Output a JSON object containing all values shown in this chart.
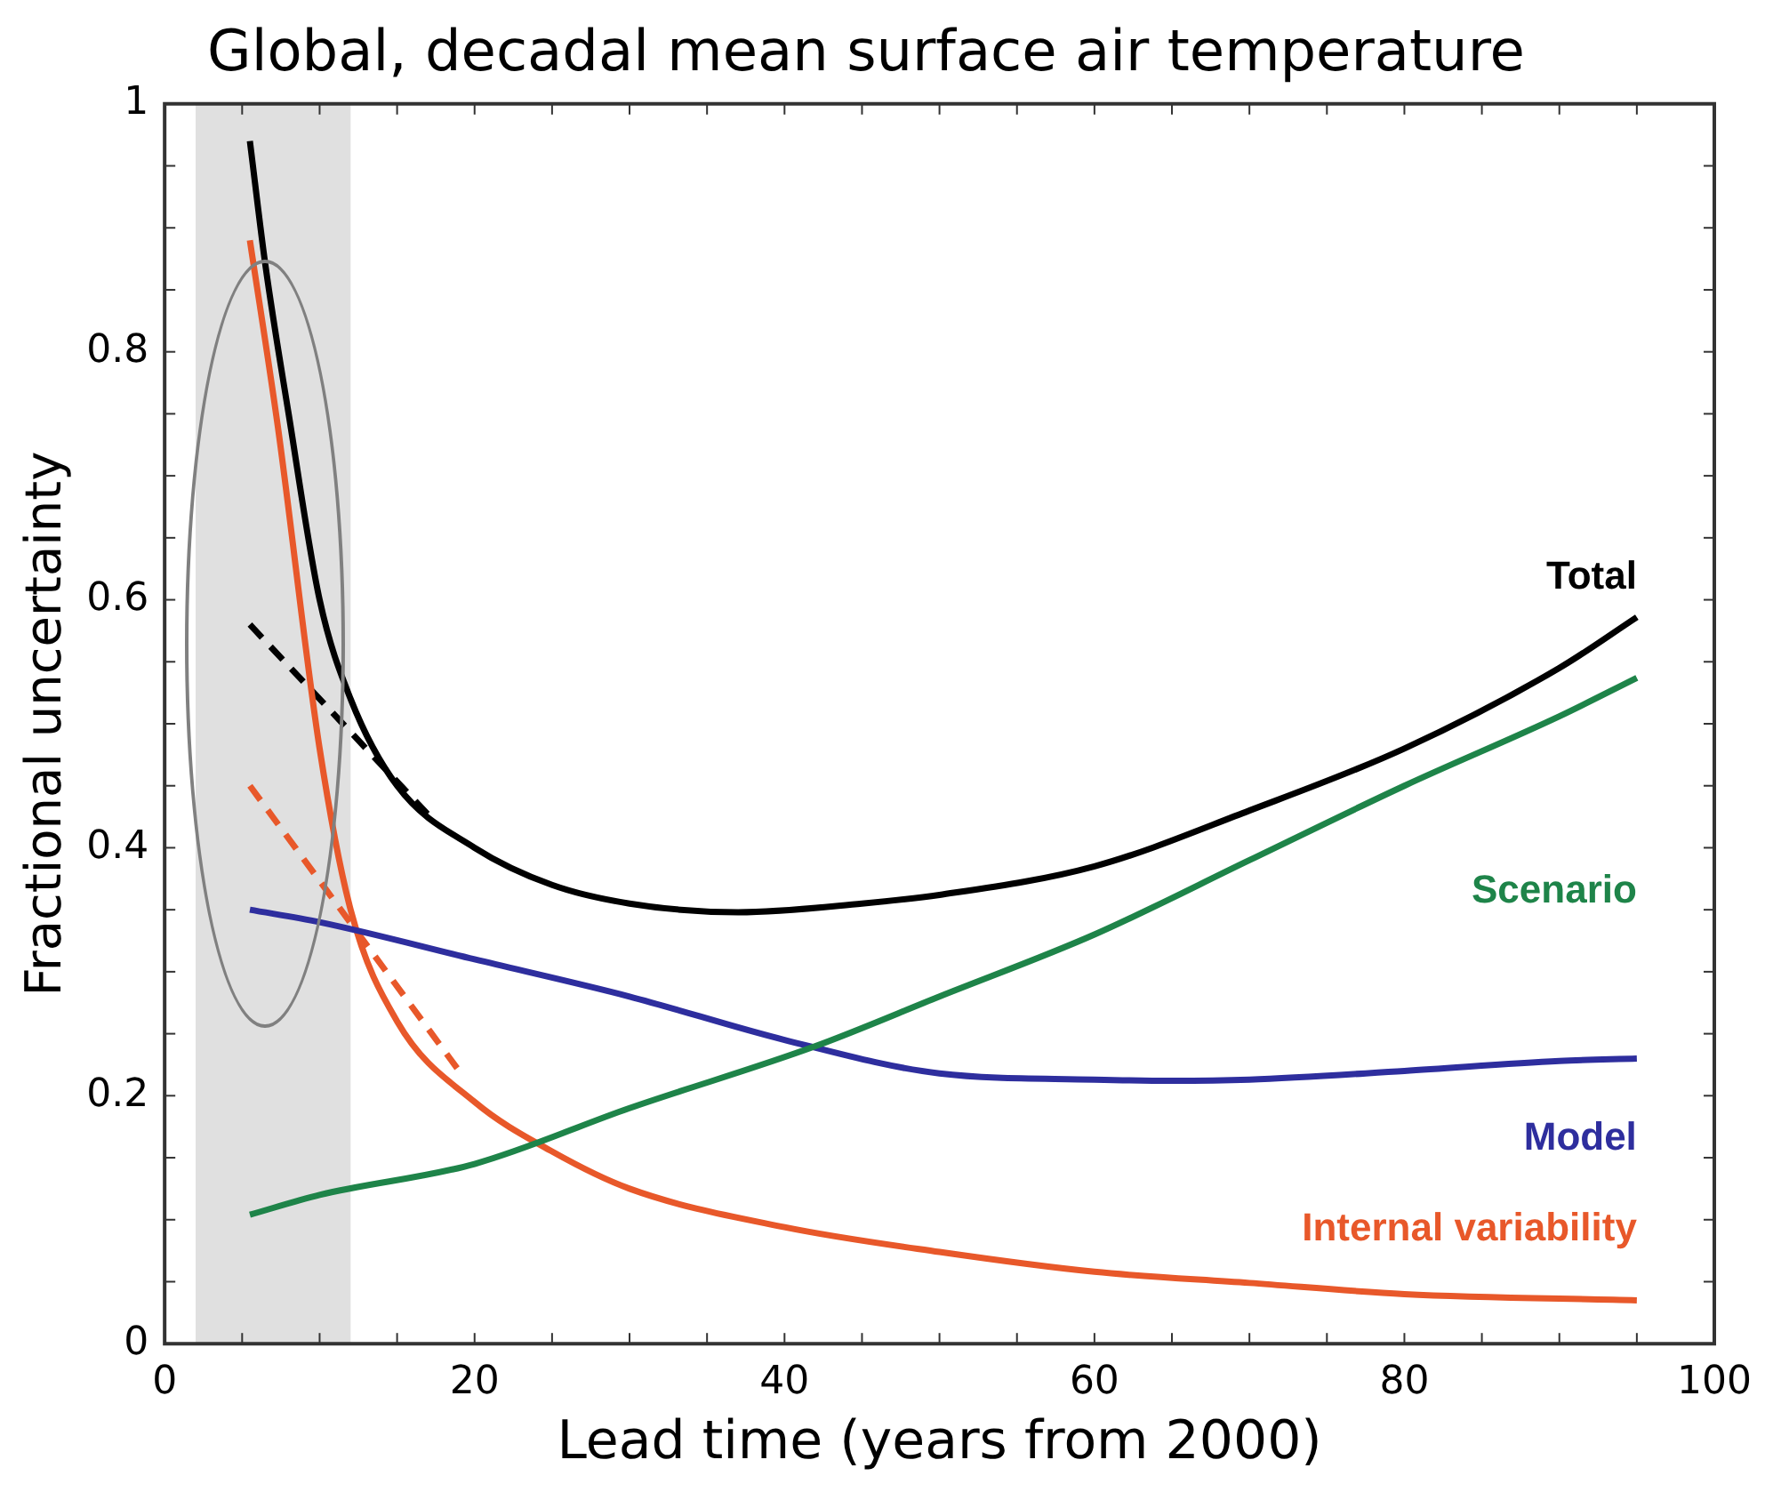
{
  "chart_data": {
    "type": "line",
    "title": "Global, decadal mean surface air temperature",
    "xlabel": "Lead time (years from 2000)",
    "ylabel": "Fractional uncertainty",
    "xlim": [
      0,
      100
    ],
    "ylim": [
      0,
      1
    ],
    "xticks": [
      0,
      20,
      40,
      60,
      80,
      100
    ],
    "yticks": [
      0,
      0.2,
      0.4,
      0.6,
      0.8,
      1
    ],
    "grid": false,
    "bands": [
      {
        "axis": "x",
        "from": 2,
        "to": 12,
        "color": "#e0e0e0"
      }
    ],
    "series": [
      {
        "name": "Total",
        "color": "#000000",
        "x": [
          5.5,
          6.5,
          8,
          10,
          12,
          15,
          20,
          25,
          30,
          37,
          45,
          50,
          60,
          70,
          80,
          90,
          95
        ],
        "values": [
          0.97,
          0.87,
          0.75,
          0.6,
          0.52,
          0.45,
          0.4,
          0.37,
          0.355,
          0.348,
          0.355,
          0.362,
          0.385,
          0.43,
          0.48,
          0.545,
          0.586
        ]
      },
      {
        "name": "Scenario",
        "color": "#1e8449",
        "x": [
          5.5,
          10,
          20,
          30,
          42,
          50,
          60,
          70,
          80,
          90,
          95
        ],
        "values": [
          0.104,
          0.12,
          0.145,
          0.19,
          0.24,
          0.28,
          0.33,
          0.39,
          0.45,
          0.506,
          0.537
        ]
      },
      {
        "name": "Model",
        "color": "#2e2e9e",
        "x": [
          5.5,
          10,
          20,
          30,
          40,
          50,
          60,
          65,
          70,
          80,
          90,
          95
        ],
        "values": [
          0.35,
          0.34,
          0.31,
          0.28,
          0.245,
          0.218,
          0.213,
          0.212,
          0.213,
          0.22,
          0.228,
          0.23
        ]
      },
      {
        "name": "Internal variability",
        "color": "#e8582a",
        "x": [
          5.5,
          7.3,
          10,
          12,
          15,
          20,
          25,
          30,
          40,
          50,
          60,
          70,
          80,
          95
        ],
        "values": [
          0.89,
          0.74,
          0.48,
          0.35,
          0.26,
          0.195,
          0.155,
          0.125,
          0.094,
          0.074,
          0.058,
          0.049,
          0.04,
          0.035
        ]
      },
      {
        "color": "#000000",
        "line_style": "dashed",
        "x": [
          5.5,
          17.5
        ],
        "values": [
          0.58,
          0.42
        ]
      },
      {
        "color": "#e8582a",
        "line_style": "dashed",
        "x": [
          5.5,
          19
        ],
        "values": [
          0.45,
          0.22
        ]
      }
    ]
  }
}
